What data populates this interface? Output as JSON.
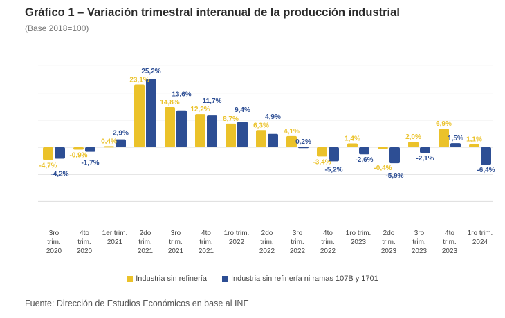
{
  "title": "Gráfico 1 – Variación trimestral interanual de la producción industrial",
  "subtitle": "(Base 2018=100)",
  "source": "Fuente: Dirección de Estudios Económicos en base al INE",
  "chart_data": {
    "type": "bar",
    "categories": [
      [
        "3ro",
        "trim.",
        "2020"
      ],
      [
        "4to",
        "trim.",
        "2020"
      ],
      [
        "1er trim.",
        "2021"
      ],
      [
        "2do",
        "trim.",
        "2021"
      ],
      [
        "3ro",
        "trim.",
        "2021"
      ],
      [
        "4to",
        "trim.",
        "2021"
      ],
      [
        "1ro trim.",
        "2022"
      ],
      [
        "2do",
        "trim.",
        "2022"
      ],
      [
        "3ro",
        "trim.",
        "2022"
      ],
      [
        "4to",
        "trim.",
        "2022"
      ],
      [
        "1ro trim.",
        "2023"
      ],
      [
        "2do",
        "trim.",
        "2023"
      ],
      [
        "3ro",
        "trim.",
        "2023"
      ],
      [
        "4to",
        "trim.",
        "2023"
      ],
      [
        "1ro trim.",
        "2024"
      ]
    ],
    "series": [
      {
        "name": "Industria sin refinería",
        "color": "#EBC22A",
        "values": [
          -4.7,
          -0.9,
          0.4,
          23.1,
          14.8,
          12.2,
          8.7,
          6.3,
          4.1,
          -3.4,
          1.4,
          -0.4,
          2.0,
          6.9,
          1.1
        ],
        "labels": [
          "-4,7%",
          "-0,9%",
          "0,4%",
          "23,1%",
          "14,8%",
          "12,2%",
          "8,7%",
          "6,3%",
          "4,1%",
          "-3,4%",
          "1,4%",
          "-0,4%",
          "2,0%",
          "6,9%",
          "1,1%"
        ]
      },
      {
        "name": "Industria sin refinería ni ramas 107B y 1701",
        "color": "#2D4E94",
        "values": [
          -4.2,
          -1.7,
          2.9,
          25.2,
          13.6,
          11.7,
          9.4,
          4.9,
          0.2,
          -5.2,
          -2.6,
          -5.9,
          -2.1,
          1.5,
          -6.4
        ],
        "labels": [
          "-4,2%",
          "-1,7%",
          "2,9%",
          "25,2%",
          "13,6%",
          "11,7%",
          "9,4%",
          "4,9%",
          "0,2%",
          "-5,2%",
          "-2,6%",
          "-5,9%",
          "-2,1%",
          "1,5%",
          "-6,4%"
        ]
      }
    ],
    "ylim": [
      -20,
      30
    ],
    "grid": true,
    "legend": "bottom"
  }
}
